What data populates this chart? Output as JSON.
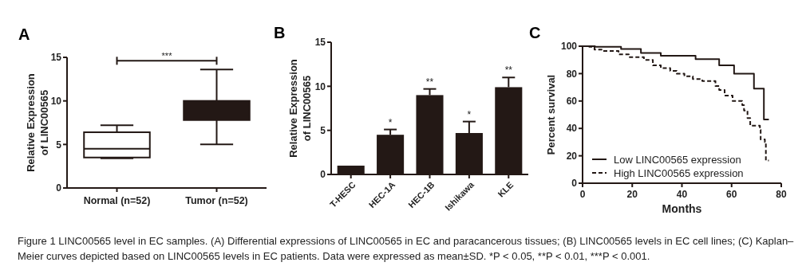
{
  "chart_data": [
    {
      "type": "box",
      "title": "A",
      "ylabel": "Relative Expression\nof LINC00565",
      "categories": [
        "Normal (n=52)",
        "Tumor (n=52)"
      ],
      "colors": [
        "#ffffff",
        "#231815"
      ],
      "boxes": [
        {
          "low": 3.4,
          "q1": 3.5,
          "median": 4.5,
          "q3": 6.4,
          "high": 7.2
        },
        {
          "low": 5.0,
          "q1": 7.8,
          "median": null,
          "q3": 10.0,
          "high": 13.6
        }
      ],
      "ylim": [
        0,
        15
      ],
      "yticks": [
        0,
        5,
        10,
        15
      ],
      "annotations": [
        "***"
      ]
    },
    {
      "type": "bar",
      "title": "B",
      "ylabel": "Relative Expression\nof LINC00565",
      "categories": [
        "T-HESC",
        "HEC-1A",
        "HEC-1B",
        "Ishikawa",
        "KLE"
      ],
      "color": "#231815",
      "values": [
        1.0,
        4.5,
        9.0,
        4.7,
        9.9
      ],
      "errors": [
        null,
        [
          4.5,
          5.1
        ],
        [
          9.0,
          9.7
        ],
        [
          4.7,
          6.0
        ],
        [
          9.9,
          11.0
        ]
      ],
      "value_labels": [
        null,
        "*",
        "**",
        "*",
        "**"
      ],
      "ylim": [
        0,
        15
      ],
      "yticks": [
        0,
        5,
        10,
        15
      ]
    },
    {
      "type": "step",
      "title": "C",
      "xlabel": "Months",
      "ylabel": "Percent survival",
      "xlim": [
        0,
        80
      ],
      "xticks": [
        0,
        20,
        40,
        60,
        80
      ],
      "ylim": [
        0,
        100
      ],
      "yticks": [
        0,
        20,
        40,
        60,
        80,
        100
      ],
      "legend": "bottom left",
      "series": [
        {
          "name": "Low LINC00565 expression",
          "color": "#231815",
          "line_style": "solid",
          "x": [
            0,
            5,
            15.5,
            23.5,
            31.5,
            45.5,
            55,
            61,
            69,
            73,
            75
          ],
          "values": [
            100,
            99.5,
            98,
            95,
            93,
            90.5,
            86,
            80,
            69,
            46.5,
            46.5
          ]
        },
        {
          "name": "High LINC00565 expression",
          "color": "#231815",
          "line_style": "dashed",
          "x": [
            0,
            2.7,
            4.8,
            8,
            14.5,
            18.6,
            24.7,
            28.3,
            31.5,
            35.3,
            37.9,
            41,
            44.4,
            48.2,
            53.5,
            55,
            57.2,
            60.4,
            64.3,
            65,
            66.4,
            67.5,
            71.4,
            71.7,
            73.4,
            73.8,
            75
          ],
          "values": [
            100,
            99.5,
            97.5,
            96.5,
            94,
            92,
            90,
            86,
            84,
            82,
            80,
            78,
            76,
            74.5,
            71,
            68,
            64,
            60,
            57,
            53,
            47.5,
            42,
            39,
            32,
            30,
            16.5,
            16.5
          ]
        }
      ]
    },
    {
      "type": "other",
      "annotations": [
        "Figure 1 LINC00565 level in EC samples. (A) Differential expressions of LINC00565 in EC and paracancerous tissues; (B) LINC00565 levels in EC cell lines; (C) Kaplan–Meier curves depicted based on LINC00565 levels in EC patients. Data were expressed as mean±SD. *P < 0.05, **P < 0.01, ***P < 0.001."
      ]
    }
  ]
}
